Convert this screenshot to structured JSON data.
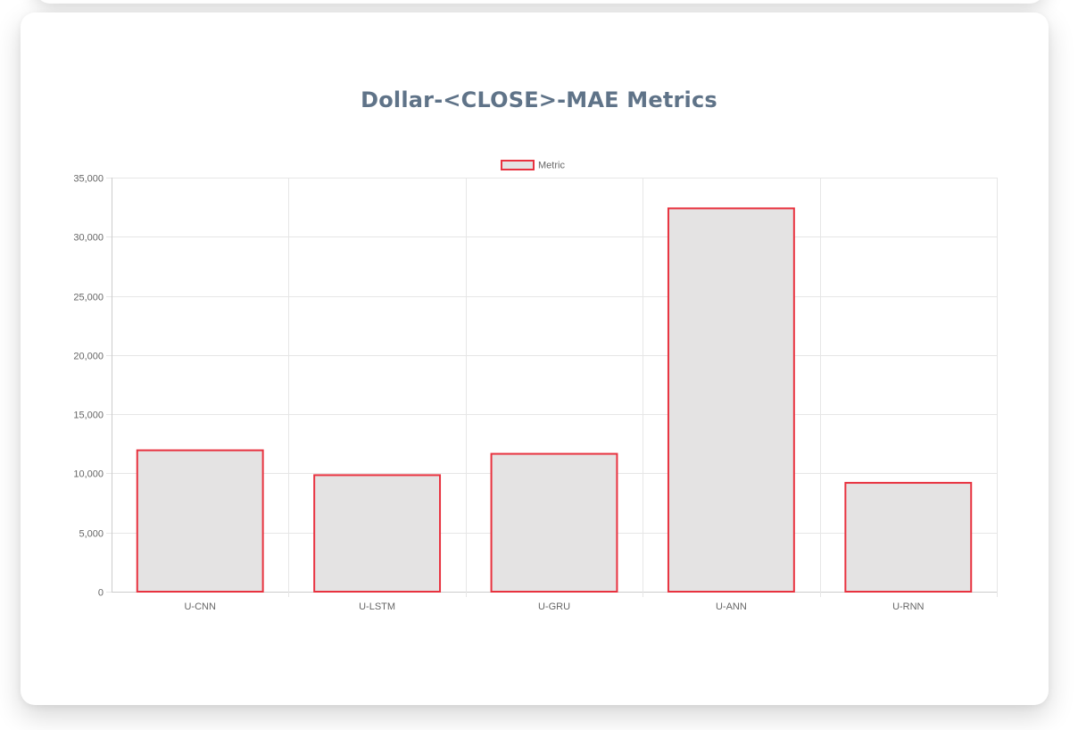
{
  "chart_data": {
    "type": "bar",
    "title": "Dollar-<CLOSE>-MAE Metrics",
    "categories": [
      "U-CNN",
      "U-LSTM",
      "U-GRU",
      "U-ANN",
      "U-RNN"
    ],
    "series": [
      {
        "name": "Metric",
        "values": [
          11950,
          9850,
          11650,
          32400,
          9200
        ]
      }
    ],
    "xlabel": "",
    "ylabel": "",
    "ylim": [
      0,
      35000
    ],
    "yticks": [
      "0",
      "5,000",
      "10,000",
      "15,000",
      "20,000",
      "25,000",
      "30,000",
      "35,000"
    ],
    "legend_position": "top-center",
    "grid": true,
    "colors": {
      "bar_fill": "#e4e3e3",
      "bar_border": "#e8323f",
      "title": "#5f7388",
      "grid": "#e6e6e6",
      "axis_text": "#666666"
    }
  }
}
